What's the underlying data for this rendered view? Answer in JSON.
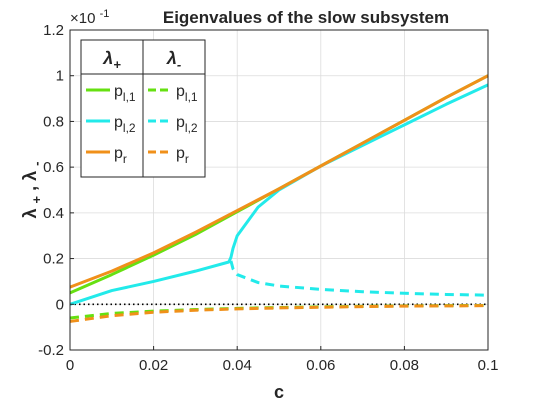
{
  "chart_data": {
    "type": "line",
    "title": "Eigenvalues of the slow subsystem",
    "exponent_label": "×10",
    "exponent_power": "-1",
    "xlabel": "c",
    "ylabel_parts": [
      "λ",
      "+",
      ", λ",
      "-"
    ],
    "xlim": [
      0,
      0.1
    ],
    "ylim": [
      -0.2,
      1.2
    ],
    "xticks": [
      0,
      0.02,
      0.04,
      0.06,
      0.08,
      0.1
    ],
    "xtick_labels": [
      "0",
      "0.02",
      "0.04",
      "0.06",
      "0.08",
      "0.1"
    ],
    "yticks": [
      -0.2,
      0,
      0.2,
      0.4,
      0.6,
      0.8,
      1,
      1.2
    ],
    "ytick_labels": [
      "-0.2",
      "0",
      "0.2",
      "0.4",
      "0.6",
      "0.8",
      "1",
      "1.2"
    ],
    "grid": true,
    "zero_line": true,
    "legend": {
      "placement": "top-left",
      "column_headers": [
        {
          "symbol": "λ",
          "sub": "+"
        },
        {
          "symbol": "λ",
          "sub": "-"
        }
      ],
      "rows": [
        {
          "base": "p",
          "sub": "l,1",
          "color": "#66e011"
        },
        {
          "base": "p",
          "sub": "l,2",
          "color": "#22eaea"
        },
        {
          "base": "p",
          "sub": "r",
          "color": "#f0901a"
        }
      ]
    },
    "series": [
      {
        "legend_row": 0,
        "column": "plus",
        "color": "#66e011",
        "dash": "solid",
        "x": [
          0,
          0.01,
          0.02,
          0.03,
          0.04,
          0.05,
          0.06,
          0.07,
          0.08,
          0.09,
          0.1
        ],
        "y": [
          0.05,
          0.13,
          0.215,
          0.305,
          0.405,
          0.505,
          0.605,
          0.705,
          0.805,
          0.905,
          1.0
        ]
      },
      {
        "legend_row": 0,
        "column": "minus",
        "color": "#66e011",
        "dash": "dashed",
        "x": [
          0,
          0.01,
          0.02,
          0.03,
          0.04,
          0.05,
          0.06,
          0.07,
          0.08,
          0.09,
          0.1
        ],
        "y": [
          -0.06,
          -0.04,
          -0.03,
          -0.023,
          -0.018,
          -0.014,
          -0.011,
          -0.009,
          -0.007,
          -0.006,
          -0.005
        ]
      },
      {
        "legend_row": 1,
        "column": "plus",
        "color": "#22eaea",
        "dash": "solid",
        "x": [
          0,
          0.01,
          0.02,
          0.03,
          0.038,
          0.0385,
          0.039,
          0.04,
          0.045,
          0.05,
          0.06,
          0.07,
          0.08,
          0.09,
          0.1
        ],
        "y": [
          0.0,
          0.06,
          0.1,
          0.145,
          0.185,
          0.205,
          0.245,
          0.3,
          0.425,
          0.5,
          0.605,
          0.695,
          0.785,
          0.875,
          0.96
        ]
      },
      {
        "legend_row": 1,
        "column": "minus",
        "color": "#22eaea",
        "dash": "dashed",
        "x": [
          0.0385,
          0.039,
          0.04,
          0.045,
          0.05,
          0.06,
          0.07,
          0.08,
          0.09,
          0.1
        ],
        "y": [
          0.19,
          0.155,
          0.13,
          0.095,
          0.08,
          0.065,
          0.055,
          0.048,
          0.043,
          0.04
        ]
      },
      {
        "legend_row": 2,
        "column": "plus",
        "color": "#f0901a",
        "dash": "solid",
        "x": [
          0,
          0.01,
          0.02,
          0.03,
          0.04,
          0.05,
          0.06,
          0.07,
          0.08,
          0.09,
          0.1
        ],
        "y": [
          0.075,
          0.145,
          0.225,
          0.315,
          0.41,
          0.505,
          0.605,
          0.705,
          0.805,
          0.905,
          1.0
        ]
      },
      {
        "legend_row": 2,
        "column": "minus",
        "color": "#f0901a",
        "dash": "dashed",
        "x": [
          0,
          0.01,
          0.02,
          0.03,
          0.04,
          0.05,
          0.06,
          0.07,
          0.08,
          0.09,
          0.1
        ],
        "y": [
          -0.075,
          -0.05,
          -0.035,
          -0.026,
          -0.02,
          -0.016,
          -0.013,
          -0.01,
          -0.008,
          -0.007,
          -0.006
        ]
      }
    ]
  }
}
